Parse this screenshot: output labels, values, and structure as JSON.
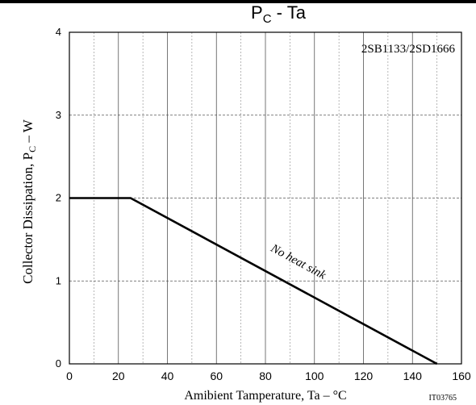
{
  "chart_data": {
    "type": "line",
    "title_main": "P",
    "title_sub": "C",
    "title_rest": " - Ta",
    "part_number": "2SB1133/2SD1666",
    "xlabel": "Amibient Tamperature, Ta  –  °C",
    "ylabel_main": "Collector Dissipation,  P",
    "ylabel_sub": "C",
    "ylabel_rest": "  –  W",
    "code_label": "IT03765",
    "xlim": [
      0,
      160
    ],
    "ylim": [
      0,
      4
    ],
    "x_ticks": [
      "0",
      "20",
      "40",
      "60",
      "80",
      "100",
      "120",
      "140",
      "160"
    ],
    "y_ticks": [
      "0",
      "1",
      "2",
      "3",
      "4"
    ],
    "grid": true,
    "series": [
      {
        "name": "No heat sink",
        "x": [
          0,
          25,
          150
        ],
        "y": [
          2,
          2,
          0
        ]
      }
    ]
  }
}
